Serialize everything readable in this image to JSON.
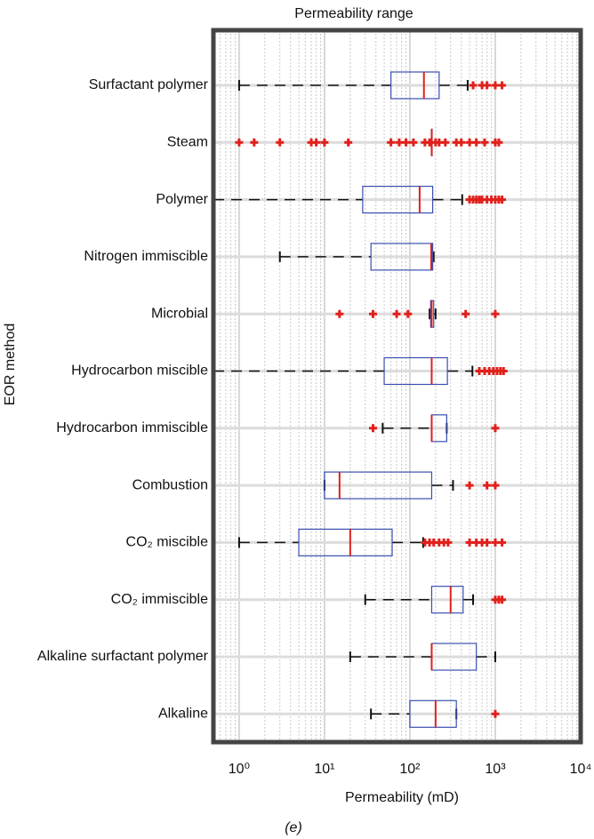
{
  "chart_data": {
    "type": "box",
    "title": "Permeability range",
    "xlabel": "Permeability (mD)",
    "ylabel": "EOR method",
    "caption": "(e)",
    "xscale": "log",
    "xlim": [
      0.5,
      10000
    ],
    "xticks": [
      {
        "value": 1,
        "label": "10⁰"
      },
      {
        "value": 10,
        "label": "10¹"
      },
      {
        "value": 100,
        "label": "10²"
      },
      {
        "value": 1000,
        "label": "10³"
      },
      {
        "value": 10000,
        "label": "10⁴"
      }
    ],
    "grid": true,
    "box_color": "#3a4fb0",
    "median_color": "#e0201b",
    "outlier_color": "#e0201b",
    "whisker_color": "#111111",
    "categories": [
      "Surfactant polymer",
      "Steam",
      "Polymer",
      "Nitrogen immiscible",
      "Microbial",
      "Hydrocarbon miscible",
      "Hydrocarbon immiscible",
      "Combustion",
      "CO₂ miscible",
      "CO₂ immiscible",
      "Alkaline surfactant polymer",
      "Alkaline"
    ],
    "boxes": [
      {
        "low": 1,
        "q1": 60,
        "median": 146,
        "q3": 220,
        "high": 475,
        "outliers": [
          550,
          700,
          800,
          1000,
          1200
        ]
      },
      {
        "low": 180,
        "q1": 180,
        "median": 180,
        "q3": 180,
        "high": 180,
        "outliers": [
          1,
          1.5,
          3,
          7,
          8,
          10,
          19,
          60,
          75,
          90,
          110,
          150,
          170,
          200,
          220,
          260,
          350,
          400,
          500,
          600,
          750,
          1000,
          1100
        ]
      },
      {
        "low": 0.5,
        "q1": 28,
        "median": 130,
        "q3": 185,
        "high": 410,
        "outliers": [
          500,
          550,
          600,
          650,
          700,
          800,
          900,
          1000,
          1100,
          1200
        ]
      },
      {
        "low": 3,
        "q1": 35,
        "median": 178,
        "q3": 185,
        "high": 190,
        "outliers": []
      },
      {
        "low": 170,
        "q1": 175,
        "median": 180,
        "q3": 190,
        "high": 200,
        "outliers": [
          15,
          37,
          70,
          95,
          450,
          1000
        ]
      },
      {
        "low": 0.5,
        "q1": 50,
        "median": 180,
        "q3": 275,
        "high": 540,
        "outliers": [
          650,
          750,
          850,
          950,
          1050,
          1150,
          1250
        ]
      },
      {
        "low": 48,
        "q1": 180,
        "median": 180,
        "q3": 270,
        "high": 270,
        "outliers": [
          37,
          1000
        ]
      },
      {
        "low": 10,
        "q1": 10,
        "median": 15,
        "q3": 180,
        "high": 320,
        "outliers": [
          500,
          800,
          1000
        ]
      },
      {
        "low": 1,
        "q1": 5,
        "median": 20,
        "q3": 62,
        "high": 143,
        "outliers": [
          150,
          170,
          190,
          220,
          250,
          280,
          500,
          600,
          700,
          800,
          1000,
          1200
        ]
      },
      {
        "low": 30,
        "q1": 180,
        "median": 300,
        "q3": 420,
        "high": 550,
        "outliers": [
          1000,
          1100,
          1200
        ]
      },
      {
        "low": 20,
        "q1": 180,
        "median": 180,
        "q3": 600,
        "high": 1000,
        "outliers": []
      },
      {
        "low": 35,
        "q1": 100,
        "median": 200,
        "q3": 350,
        "high": 350,
        "outliers": [
          1000
        ]
      }
    ]
  }
}
